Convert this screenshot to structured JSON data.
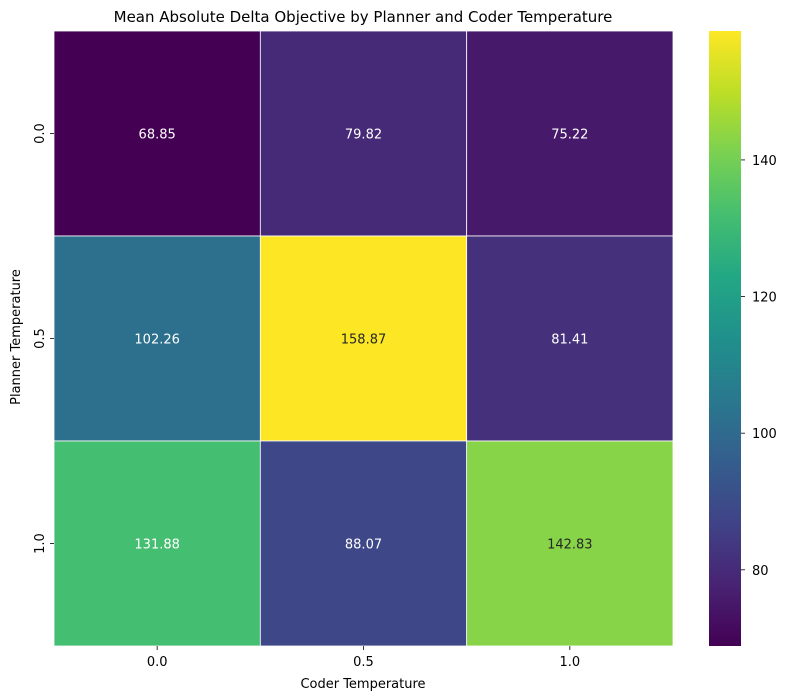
{
  "chart_data": {
    "type": "heatmap",
    "title": "Mean Absolute Delta Objective by Planner and Coder Temperature",
    "xlabel": "Coder Temperature",
    "ylabel": "Planner Temperature",
    "x_categories": [
      "0.0",
      "0.5",
      "1.0"
    ],
    "y_categories": [
      "0.0",
      "0.5",
      "1.0"
    ],
    "values": [
      [
        68.85,
        79.82,
        75.22
      ],
      [
        102.26,
        158.87,
        81.41
      ],
      [
        131.88,
        88.07,
        142.83
      ]
    ],
    "value_labels": [
      [
        "68.85",
        "79.82",
        "75.22"
      ],
      [
        "102.26",
        "158.87",
        "81.41"
      ],
      [
        "131.88",
        "88.07",
        "142.83"
      ]
    ],
    "colormap": "viridis",
    "colorbar": {
      "vmin": 68.85,
      "vmax": 158.87,
      "ticks": [
        80,
        100,
        120,
        140
      ],
      "tick_labels": [
        "80",
        "100",
        "120",
        "140"
      ]
    },
    "cell_gridlines": true,
    "grid": false
  }
}
